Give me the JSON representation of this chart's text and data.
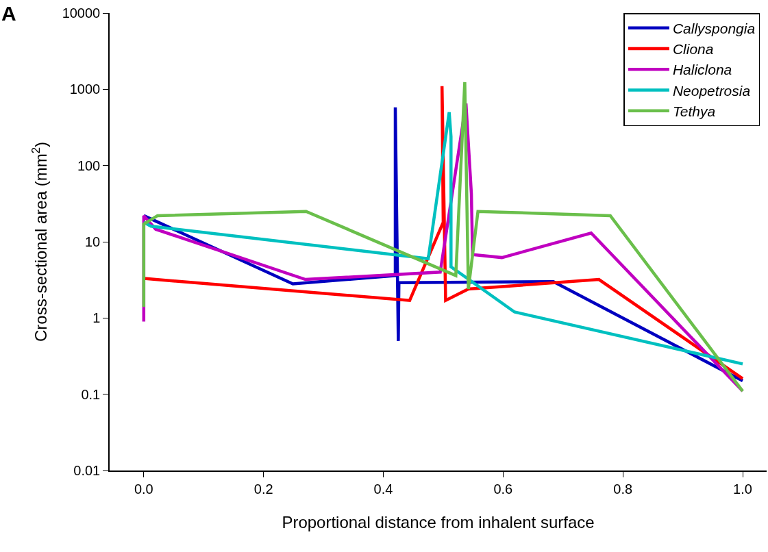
{
  "chart_data": {
    "type": "line",
    "xlabel": "Proportional distance from inhalent surface",
    "ylabel": "Cross-sectional area (mm$^{2}$)",
    "annotations": [
      "A"
    ],
    "log": "y",
    "xlim": [
      -0.057,
      1.04
    ],
    "xticks": [
      {
        "value": 0,
        "label": "0.0"
      },
      0.2,
      0.4,
      0.6,
      0.8,
      {
        "value": 1,
        "label": "1.0"
      }
    ],
    "ylim": [
      0.01,
      10000
    ],
    "yticks": [
      0.01,
      0.1,
      1,
      10,
      100,
      1000,
      10000
    ],
    "legend": "top right",
    "marker": "none",
    "line_style": "solid",
    "series": [
      {
        "name": "Callyspongia",
        "color": "#0000c0",
        "x": [
          0,
          0.249,
          0.42,
          0.42,
          0.425,
          0.426,
          0.684,
          1.0
        ],
        "values": [
          22,
          2.8,
          3.6,
          580,
          0.5,
          2.9,
          3.0,
          0.15
        ]
      },
      {
        "name": "Cliona",
        "color": "#ff0000",
        "x": [
          0,
          0.444,
          0.5,
          0.498,
          0.504,
          0.542,
          0.76,
          1.0
        ],
        "values": [
          3.3,
          1.7,
          18,
          1100,
          1.7,
          2.4,
          3.2,
          0.16
        ]
      },
      {
        "name": "Haliclona",
        "color": "#c000c0",
        "x": [
          0,
          0,
          0.02,
          0.27,
          0.495,
          0.538,
          0.547,
          0.549,
          0.598,
          0.747,
          1.0
        ],
        "values": [
          0.9,
          22,
          14.6,
          3.2,
          4.0,
          650,
          43,
          6.8,
          6.2,
          13,
          0.11
        ]
      },
      {
        "name": "Neopetrosia",
        "color": "#00c0c0",
        "x": [
          0,
          0.012,
          0.475,
          0.51,
          0.513,
          0.513,
          0.619,
          1.0
        ],
        "values": [
          18,
          16,
          6.0,
          500,
          240,
          4.7,
          1.2,
          0.25
        ]
      },
      {
        "name": "Tethya",
        "color": "#6abf4b",
        "x": [
          0,
          0,
          0.023,
          0.271,
          0.521,
          0.536,
          0.542,
          0.558,
          0.779,
          1.0
        ],
        "values": [
          1.4,
          17,
          22,
          25,
          3.6,
          1240,
          2.4,
          25,
          22,
          0.11
        ]
      }
    ]
  }
}
